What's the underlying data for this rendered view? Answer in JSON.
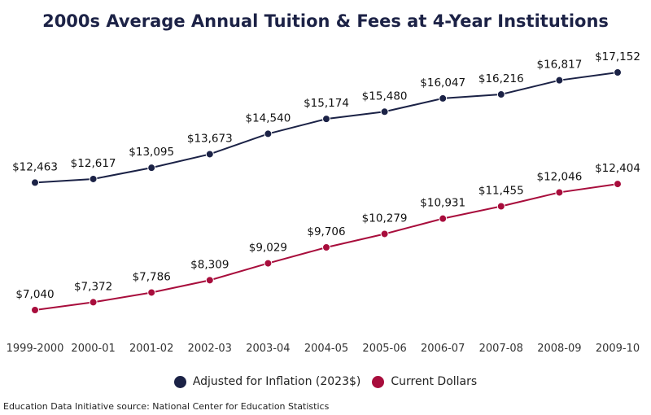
{
  "chart_data": {
    "type": "line",
    "title": "2000s Average Annual Tuition & Fees at 4-Year Institutions",
    "categories": [
      "1999-2000",
      "2000-01",
      "2001-02",
      "2002-03",
      "2003-04",
      "2004-05",
      "2005-06",
      "2006-07",
      "2007-08",
      "2008-09",
      "2009-10"
    ],
    "series": [
      {
        "name": "Adjusted for Inflation (2023$)",
        "color": "#1b2246",
        "values": [
          12463,
          12617,
          13095,
          13673,
          14540,
          15174,
          15480,
          16047,
          16216,
          16817,
          17152
        ],
        "labels": [
          "$12,463",
          "$12,617",
          "$13,095",
          "$13,673",
          "$14,540",
          "$15,174",
          "$15,480",
          "$16,047",
          "$16,216",
          "$16,817",
          "$17,152"
        ]
      },
      {
        "name": "Current Dollars",
        "color": "#a80d3c",
        "values": [
          7040,
          7372,
          7786,
          8309,
          9029,
          9706,
          10279,
          10931,
          11455,
          12046,
          12404
        ],
        "labels": [
          "$7,040",
          "$7,372",
          "$7,786",
          "$8,309",
          "$9,029",
          "$9,706",
          "$10,279",
          "$10,931",
          "$11,455",
          "$12,046",
          "$12,404"
        ]
      }
    ],
    "grid": false,
    "y_axis_visible": false,
    "legend_placement": "bottom"
  },
  "source": "Education Data Initiative source: National Center for Education Statistics"
}
